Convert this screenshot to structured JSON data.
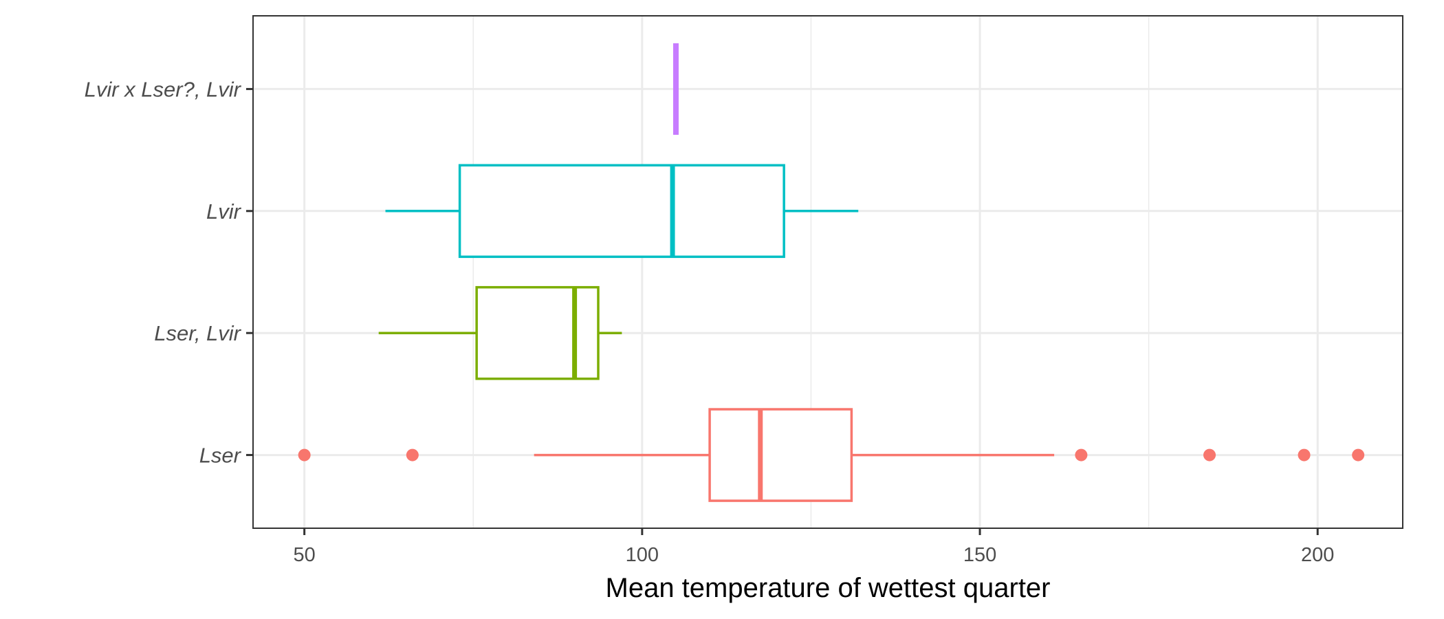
{
  "chart_data": {
    "type": "boxplot",
    "orientation": "horizontal",
    "xlabel": "Mean temperature of wettest quarter",
    "ylabel": "",
    "xlim": [
      42.4,
      212.6
    ],
    "x_ticks": [
      50,
      100,
      150,
      200
    ],
    "x_minor_ticks": [
      75,
      125,
      175
    ],
    "grid": true,
    "legend": "none",
    "categories": [
      "Lvir x Lser?, Lvir",
      "Lvir",
      "Lser, Lvir",
      "Lser"
    ],
    "series": [
      {
        "category": "Lvir x Lser?, Lvir",
        "color": "#C77CFF",
        "whisker_low": 105.0,
        "q1": 105.0,
        "median": 105.0,
        "q3": 105.0,
        "whisker_high": 105.0,
        "outliers": []
      },
      {
        "category": "Lvir",
        "color": "#00BFC4",
        "whisker_low": 62.0,
        "q1": 73.0,
        "median": 104.5,
        "q3": 121.0,
        "whisker_high": 132.0,
        "outliers": []
      },
      {
        "category": "Lser, Lvir",
        "color": "#7CAE00",
        "whisker_low": 61.0,
        "q1": 75.5,
        "median": 90.0,
        "q3": 93.5,
        "whisker_high": 97.0,
        "outliers": []
      },
      {
        "category": "Lser",
        "color": "#F8766D",
        "whisker_low": 84.0,
        "q1": 110.0,
        "median": 117.5,
        "q3": 131.0,
        "whisker_high": 161.0,
        "outliers": [
          50.0,
          66.0,
          165.0,
          184.0,
          198.0,
          206.0
        ]
      }
    ]
  }
}
